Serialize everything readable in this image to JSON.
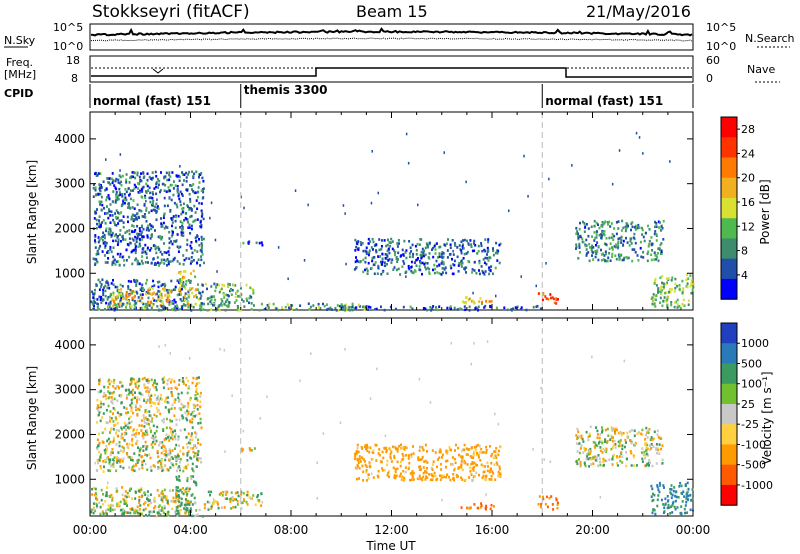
{
  "header": {
    "station": "Stokkseyri (fitACF)",
    "beam": "Beam 15",
    "date": "21/May/2016"
  },
  "summary": {
    "nsky_label": "N.Sky",
    "nsky_ticks": [
      "10^5",
      "10^0"
    ],
    "nsearch_label": "N.Search",
    "nsearch_ticks": [
      "10^5",
      "10^0"
    ],
    "freq_label_1": "Freq.",
    "freq_label_2": "[MHz]",
    "freq_ticks": [
      "18",
      "8"
    ],
    "nave_label": "Nave",
    "nave_ticks": [
      "60",
      "0"
    ],
    "cpid_label": "CPID"
  },
  "cpid_segments": [
    {
      "label": "normal (fast) 151",
      "start_h": 0,
      "end_h": 6
    },
    {
      "label": "themis 3300",
      "start_h": 6,
      "end_h": 18
    },
    {
      "label": "normal (fast) 151",
      "start_h": 18,
      "end_h": 24
    }
  ],
  "colors": {
    "power_scale": [
      "#0000ff",
      "#1f4fa8",
      "#3d8c6e",
      "#4fb84f",
      "#d8e032",
      "#f0b020",
      "#ff7a00",
      "#ff3300",
      "#ff0000"
    ],
    "velocity_scale": [
      "#2040c0",
      "#2a7ab8",
      "#3a9a60",
      "#70c030",
      "#c8c8c8",
      "#ffd040",
      "#ff9a00",
      "#ff5a00",
      "#ff0000"
    ],
    "velocity_gray": "#c8c8c8"
  },
  "chart_data": [
    {
      "type": "heatmap",
      "name": "power-panel",
      "ylabel": "Slant Range [km]",
      "xlabel": "",
      "xlim": [
        0,
        24
      ],
      "ylim": [
        180,
        4600
      ],
      "y_ticks": [
        "1000",
        "2000",
        "3000",
        "4000"
      ],
      "x_ticks": [],
      "colorbar": {
        "label": "Power [dB]",
        "ticks": [
          "4",
          "8",
          "12",
          "16",
          "20",
          "24",
          "28"
        ],
        "range": [
          0,
          30
        ]
      },
      "echo_regions": [
        {
          "t0": 0.0,
          "t1": 4.0,
          "r0": 200,
          "r1": 900,
          "level": 6
        },
        {
          "t0": 0.8,
          "t1": 3.2,
          "r0": 300,
          "r1": 700,
          "level": 18
        },
        {
          "t0": 3.5,
          "t1": 4.2,
          "r0": 300,
          "r1": 1100,
          "level": 16
        },
        {
          "t0": 4.2,
          "t1": 6.5,
          "r0": 250,
          "r1": 800,
          "level": 10
        },
        {
          "t0": 0.0,
          "t1": 11.0,
          "r0": 200,
          "r1": 350,
          "level": 10
        },
        {
          "t0": 14.7,
          "t1": 16.2,
          "r0": 350,
          "r1": 500,
          "level": 18
        },
        {
          "t0": 17.8,
          "t1": 18.6,
          "r0": 350,
          "r1": 600,
          "level": 24
        },
        {
          "t0": 22.3,
          "t1": 24.0,
          "r0": 250,
          "r1": 1000,
          "level": 12
        },
        {
          "t0": 0.1,
          "t1": 4.5,
          "r0": 1200,
          "r1": 3300,
          "level": 6
        },
        {
          "t0": 6.0,
          "t1": 6.9,
          "r0": 1650,
          "r1": 1750,
          "level": 6
        },
        {
          "t0": 10.5,
          "t1": 16.3,
          "r0": 1000,
          "r1": 1800,
          "level": 6
        },
        {
          "t0": 19.3,
          "t1": 22.8,
          "r0": 1300,
          "r1": 2200,
          "level": 8
        },
        {
          "t0": 10.0,
          "t1": 18.0,
          "r0": 200,
          "r1": 300,
          "level": 6
        }
      ]
    },
    {
      "type": "heatmap",
      "name": "velocity-panel",
      "ylabel": "Slant Range [km]",
      "xlabel": "Time UT",
      "xlim": [
        0,
        24
      ],
      "ylim": [
        180,
        4600
      ],
      "y_ticks": [
        "1000",
        "2000",
        "3000",
        "4000"
      ],
      "x_ticks": [
        "00:00",
        "04:00",
        "08:00",
        "12:00",
        "16:00",
        "20:00",
        "00:00"
      ],
      "colorbar": {
        "label": "Velocity [m s⁻¹]",
        "ticks": [
          "1000",
          "500",
          "100",
          "25",
          "-25",
          "-100",
          "-500",
          "-1000"
        ],
        "range": [
          -1200,
          1200
        ]
      },
      "echo_regions": [
        {
          "t0": 0.0,
          "t1": 4.0,
          "r0": 250,
          "r1": 850,
          "level": 0
        },
        {
          "t0": 0.0,
          "t1": 4.5,
          "r0": 200,
          "r1": 350,
          "level": 80
        },
        {
          "t0": 3.4,
          "t1": 4.2,
          "r0": 300,
          "r1": 1100,
          "level": 150
        },
        {
          "t0": 4.5,
          "t1": 6.8,
          "r0": 350,
          "r1": 750,
          "level": 0
        },
        {
          "t0": 14.7,
          "t1": 16.2,
          "r0": 350,
          "r1": 500,
          "level": -300
        },
        {
          "t0": 17.8,
          "t1": 18.6,
          "r0": 350,
          "r1": 650,
          "level": -300
        },
        {
          "t0": 22.3,
          "t1": 24.0,
          "r0": 250,
          "r1": 950,
          "level": 300
        },
        {
          "t0": 10.5,
          "t1": 16.3,
          "r0": 1000,
          "r1": 1800,
          "level": -150
        },
        {
          "t0": 19.3,
          "t1": 22.8,
          "r0": 1300,
          "r1": 2200,
          "level": 0
        },
        {
          "t0": 0.2,
          "t1": 4.4,
          "r0": 1200,
          "r1": 3300,
          "level": 0
        },
        {
          "t0": 6.0,
          "t1": 6.9,
          "r0": 1650,
          "r1": 1750,
          "level": 0
        }
      ]
    }
  ]
}
